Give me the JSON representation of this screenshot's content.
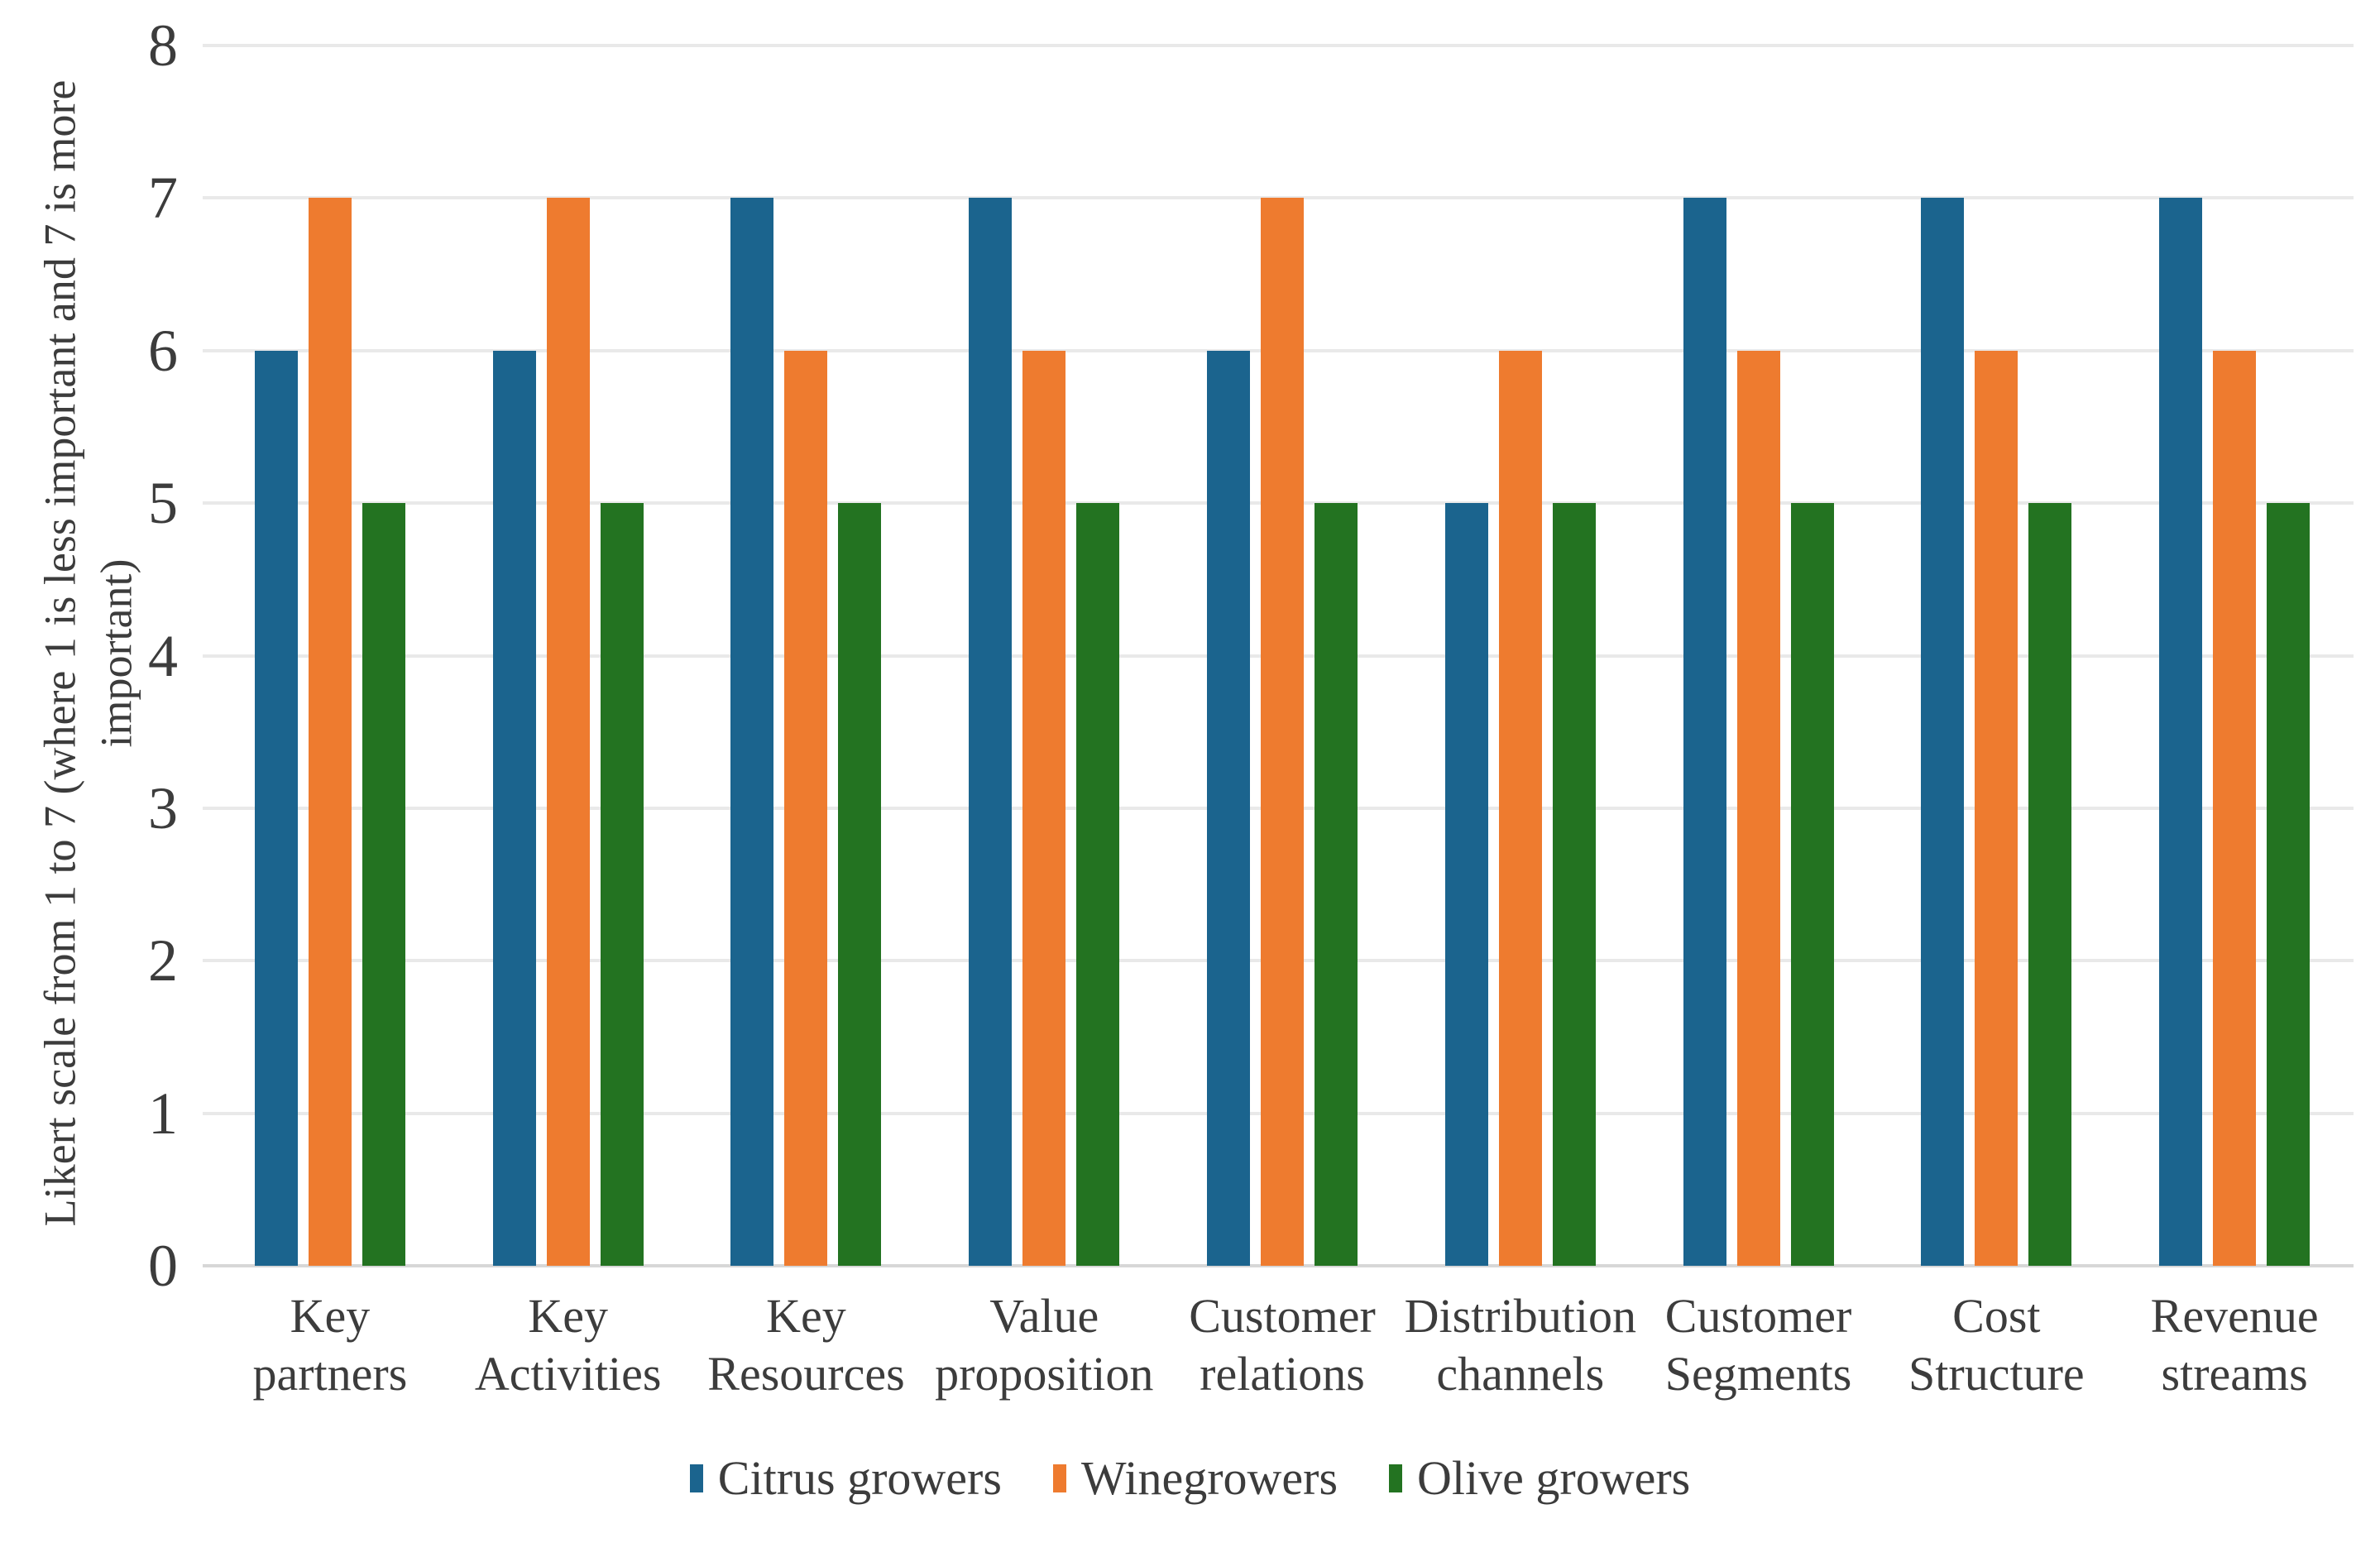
{
  "figure": {
    "background": "#ffffff",
    "text_color": "#3c3c3c",
    "gridline_color": "#e9e9e9",
    "baseline_color": "#d7d7d7"
  },
  "chart_data": {
    "type": "bar",
    "title": "",
    "xlabel": "",
    "ylabel": "Likert scale from 1 to 7 (where 1 is less important and 7 is more important)",
    "ylabel_lines": [
      "Likert scale from 1 to 7 (where 1 is less important and 7 is more",
      "important)"
    ],
    "categories": [
      "Key partners",
      "Key Activities",
      "Key Resources",
      "Value proposition",
      "Customer relations",
      "Distribution channels",
      "Customer Segments",
      "Cost Structure",
      "Revenue streams"
    ],
    "series": [
      {
        "name": "Citrus growers",
        "color": "#1B648E",
        "values": [
          6,
          6,
          7,
          7,
          6,
          5,
          7,
          7,
          7
        ]
      },
      {
        "name": "Winegrowers",
        "color": "#EE7B2F",
        "values": [
          7,
          7,
          6,
          6,
          7,
          6,
          6,
          6,
          6
        ]
      },
      {
        "name": "Olive growers",
        "color": "#237321",
        "values": [
          5,
          5,
          5,
          5,
          5,
          5,
          5,
          5,
          5
        ]
      }
    ],
    "ylim": [
      0,
      8
    ],
    "ytick_step": 1,
    "yticks": [
      0,
      1,
      2,
      3,
      4,
      5,
      6,
      7,
      8
    ],
    "grid": true,
    "legend_position": "bottom"
  }
}
